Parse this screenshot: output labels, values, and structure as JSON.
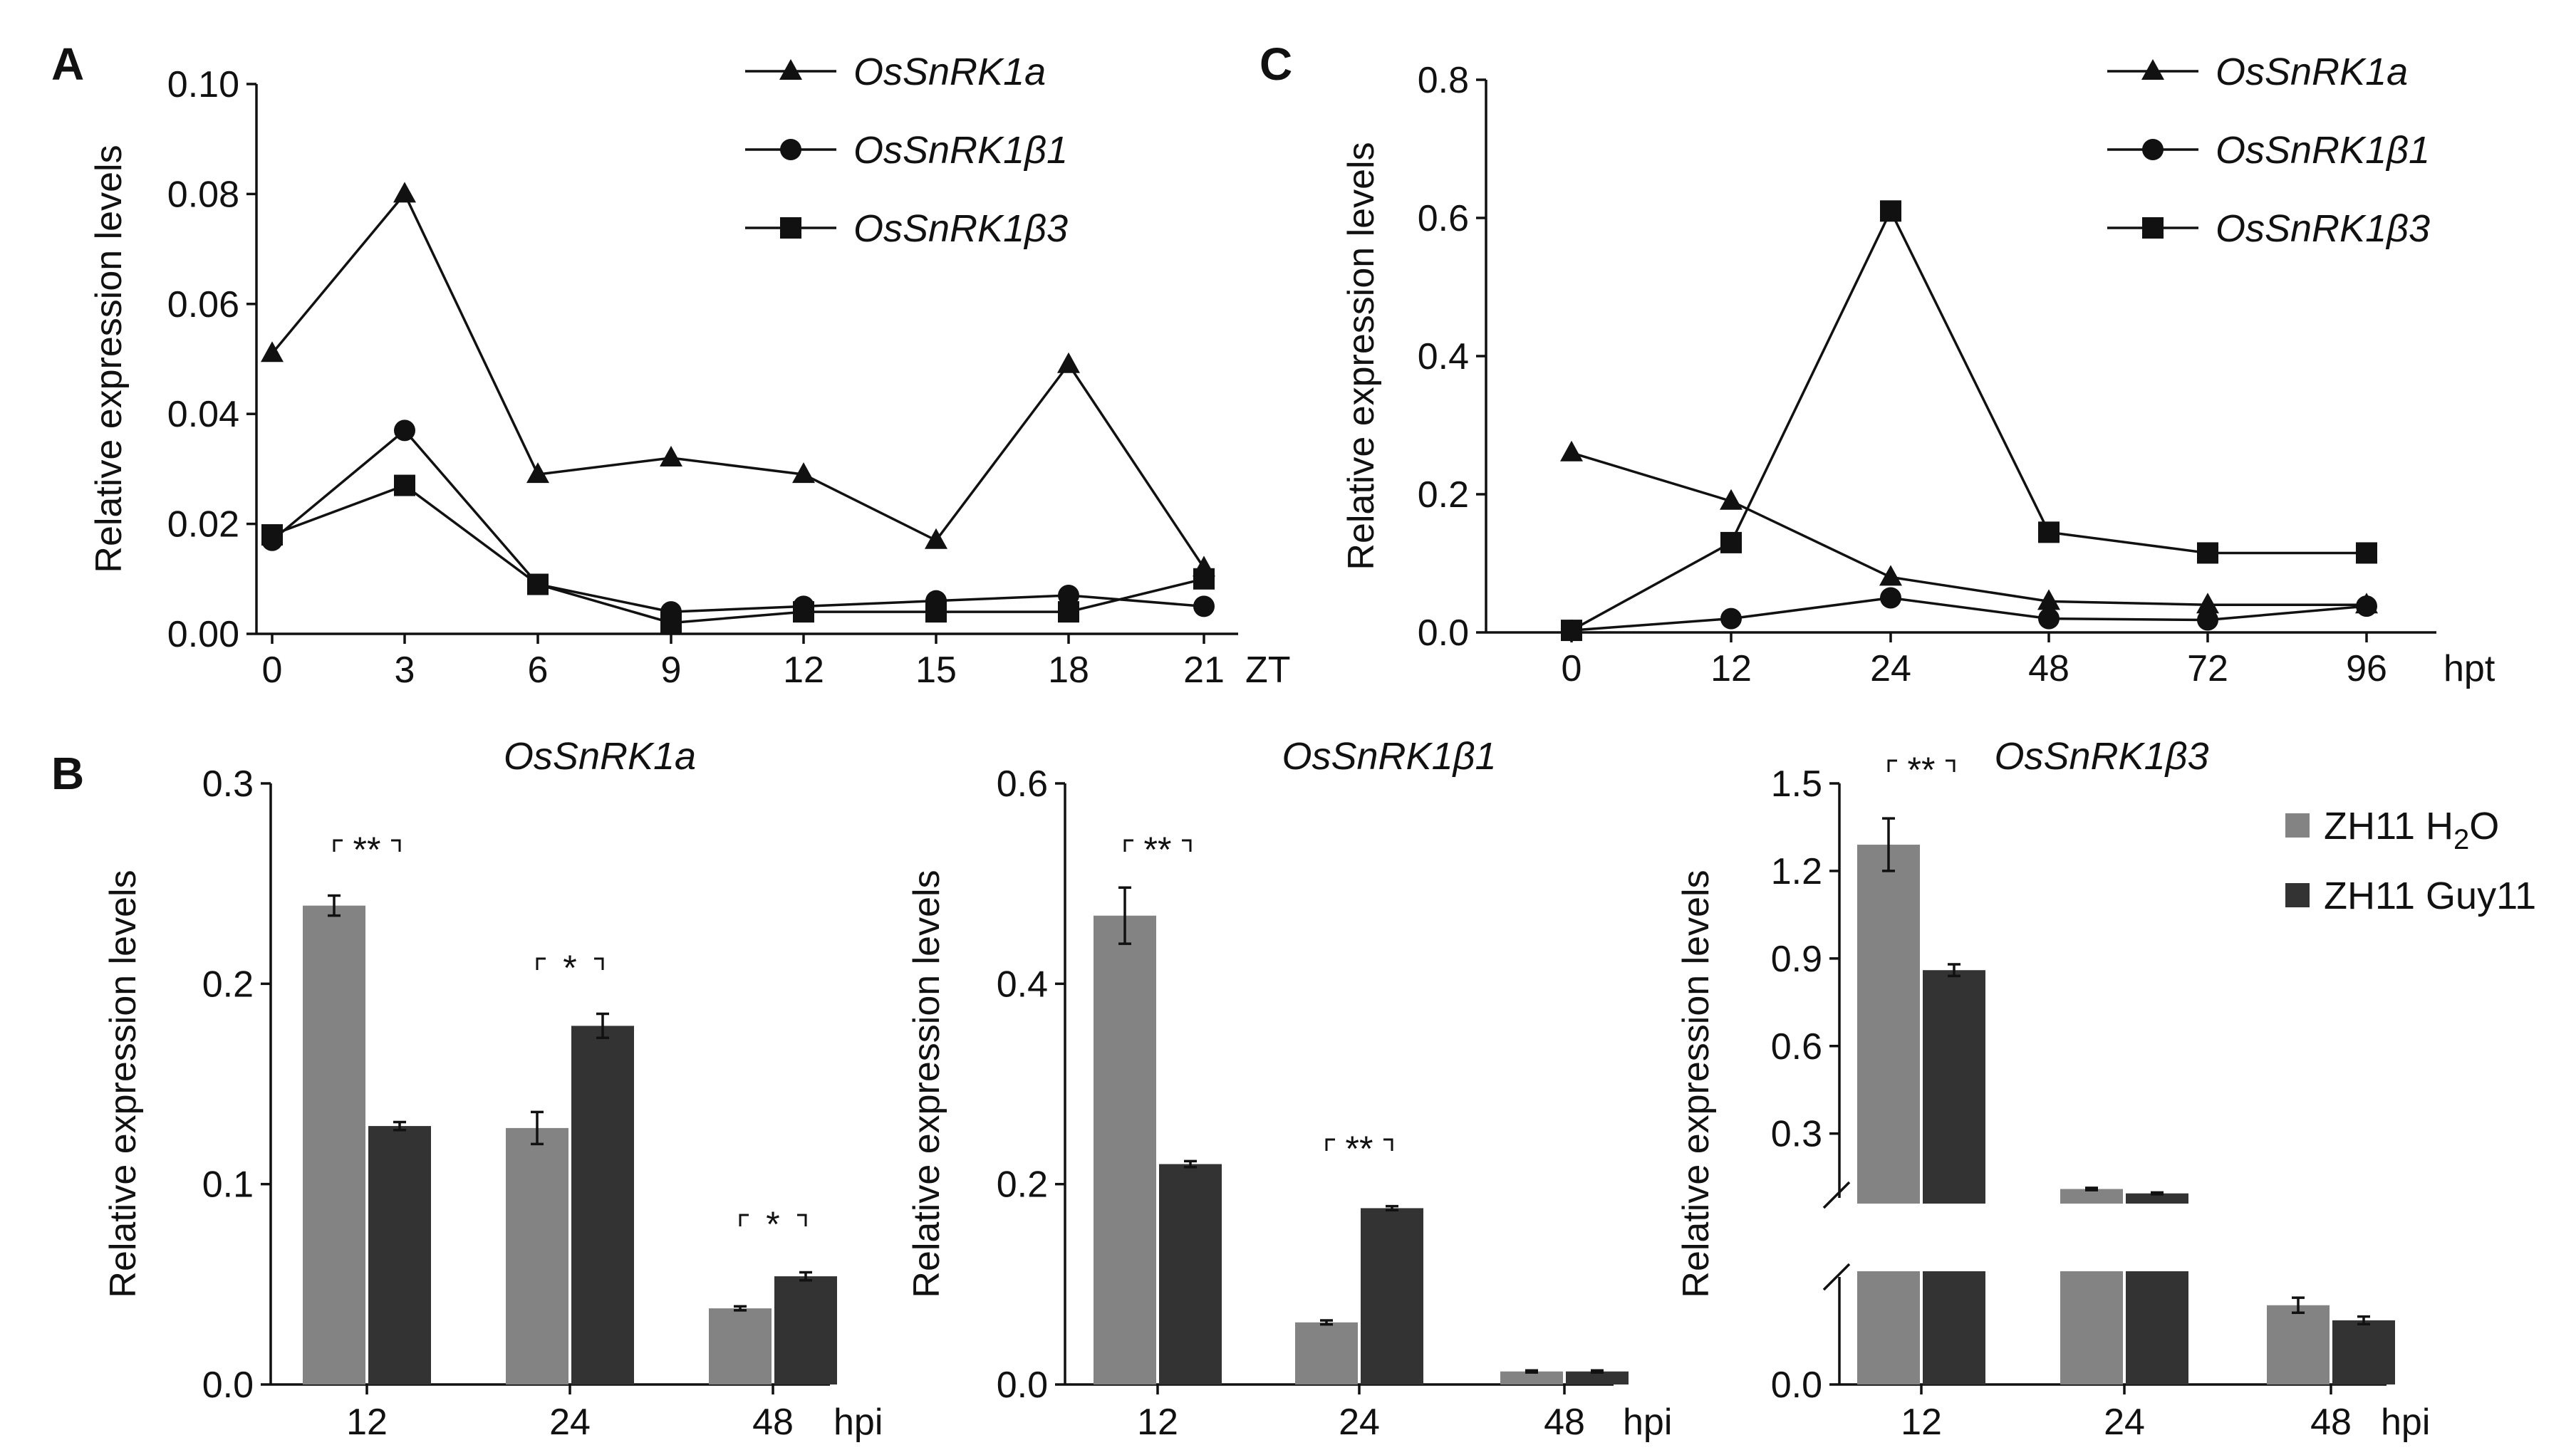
{
  "panel_labels": {
    "a": "A",
    "b": "B",
    "c": "C"
  },
  "colors": {
    "h2o": "#838383",
    "guy11": "#333333",
    "ink": "#111111",
    "background": "#ffffff"
  },
  "chart_data": [
    {
      "id": "A",
      "type": "line",
      "xlabel": "ZT",
      "ylabel": "Relative expression levels",
      "categories": [
        "0",
        "3",
        "6",
        "9",
        "12",
        "15",
        "18",
        "21"
      ],
      "ylim": [
        0,
        0.1
      ],
      "yticks": [
        "0.00",
        "0.02",
        "0.04",
        "0.06",
        "0.08",
        "0.10"
      ],
      "series": [
        {
          "name": "OsSnRK1a",
          "marker": "triangle",
          "values": [
            0.051,
            0.08,
            0.029,
            0.032,
            0.029,
            0.017,
            0.049,
            0.012
          ]
        },
        {
          "name": "OsSnRK1β1",
          "marker": "circle",
          "values": [
            0.017,
            0.037,
            0.009,
            0.004,
            0.005,
            0.006,
            0.007,
            0.005
          ]
        },
        {
          "name": "OsSnRK1β3",
          "marker": "square",
          "values": [
            0.018,
            0.027,
            0.009,
            0.002,
            0.004,
            0.004,
            0.004,
            0.01
          ]
        }
      ]
    },
    {
      "id": "C",
      "type": "line",
      "xlabel": "hpt",
      "ylabel": "Relative expression levels",
      "categories": [
        "0",
        "12",
        "24",
        "48",
        "72",
        "96"
      ],
      "ylim": [
        0,
        0.8
      ],
      "yticks": [
        "0.0",
        "0.2",
        "0.4",
        "0.6",
        "0.8"
      ],
      "series": [
        {
          "name": "OsSnRK1a",
          "marker": "triangle",
          "values": [
            0.26,
            0.19,
            0.08,
            0.045,
            0.04,
            0.04
          ]
        },
        {
          "name": "OsSnRK1β1",
          "marker": "circle",
          "values": [
            0.003,
            0.02,
            0.05,
            0.02,
            0.018,
            0.038
          ]
        },
        {
          "name": "OsSnRK1β3",
          "marker": "square",
          "values": [
            0.003,
            0.13,
            0.61,
            0.145,
            0.115,
            0.115
          ]
        }
      ]
    },
    {
      "id": "B1",
      "type": "bar",
      "title": "OsSnRK1a",
      "xlabel": "hpi",
      "ylabel": "Relative expression levels",
      "categories": [
        "12",
        "24",
        "48"
      ],
      "ylim": [
        0,
        0.3
      ],
      "yticks": [
        "0.0",
        "0.1",
        "0.2",
        "0.3"
      ],
      "series": [
        {
          "name": "ZH11 H₂O",
          "values": [
            0.239,
            0.128,
            0.038
          ],
          "errors": [
            0.005,
            0.008,
            0.001
          ]
        },
        {
          "name": "ZH11 Guy11",
          "values": [
            0.129,
            0.179,
            0.054
          ],
          "errors": [
            0.002,
            0.006,
            0.002
          ]
        }
      ],
      "significance": [
        "**",
        "*",
        "*"
      ]
    },
    {
      "id": "B2",
      "type": "bar",
      "title": "OsSnRK1β1",
      "xlabel": "hpi",
      "ylabel": "Relative expression levels",
      "categories": [
        "12",
        "24",
        "48"
      ],
      "ylim": [
        0,
        0.6
      ],
      "yticks": [
        "0.0",
        "0.2",
        "0.4",
        "0.6"
      ],
      "series": [
        {
          "name": "ZH11 H₂O",
          "values": [
            0.468,
            0.062,
            0.013
          ],
          "errors": [
            0.028,
            0.002,
            0.001
          ]
        },
        {
          "name": "ZH11 Guy11",
          "values": [
            0.22,
            0.176,
            0.013
          ],
          "errors": [
            0.003,
            0.002,
            0.001
          ]
        }
      ],
      "significance": [
        "**",
        "**",
        ""
      ]
    },
    {
      "id": "B3",
      "type": "bar",
      "title": "OsSnRK1β3",
      "xlabel": "hpi",
      "ylabel": "Relative expression levels",
      "categories": [
        "12",
        "24",
        "48"
      ],
      "ylim": [
        0,
        1.5
      ],
      "axis_break": true,
      "yticks": [
        "0.0",
        "0.3",
        "0.6",
        "0.9",
        "1.2",
        "1.5"
      ],
      "series": [
        {
          "name": "ZH11 H₂O",
          "values": [
            1.29,
            0.11,
            0.042
          ],
          "errors": [
            0.09,
            0.004,
            0.004
          ]
        },
        {
          "name": "ZH11 Guy11",
          "values": [
            0.86,
            0.095,
            0.034
          ],
          "errors": [
            0.02,
            0.003,
            0.002
          ]
        }
      ],
      "significance": [
        "**",
        "",
        ""
      ]
    }
  ],
  "legend_b": {
    "h2o_prefix": "ZH11 H",
    "h2o_sub": "2",
    "h2o_suffix": "O",
    "guy11": "ZH11 Guy11"
  }
}
